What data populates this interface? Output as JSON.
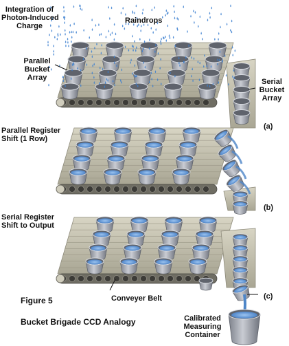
{
  "labels": {
    "integration": [
      "Integration of",
      "Photon-Induced",
      "Charge"
    ],
    "raindrops": "Raindrops",
    "parallel_bucket": [
      "Parallel",
      "Bucket",
      "Array"
    ],
    "serial_bucket": [
      "Serial",
      "Bucket",
      "Array"
    ],
    "panel_a": "(a)",
    "parallel_shift": [
      "Parallel Register",
      "Shift (1 Row)"
    ],
    "panel_b": "(b)",
    "serial_shift": [
      "Serial Register",
      "Shift to Output"
    ],
    "panel_c": "(c)",
    "conveyer": "Conveyer Belt",
    "figure": "Figure 5",
    "title": "Bucket Brigade CCD Analogy",
    "calibrated": [
      "Calibrated",
      "Measuring",
      "Container"
    ]
  },
  "colors": {
    "belt": "#bdbaa8",
    "belt_dark": "#6f6d63",
    "bucket": "#9a9ea8",
    "water": "#4e86c8",
    "rain": "#3b7fd0"
  },
  "icons": [
    "bucket-icon",
    "raindrop-icon",
    "belt-roller-icon"
  ]
}
